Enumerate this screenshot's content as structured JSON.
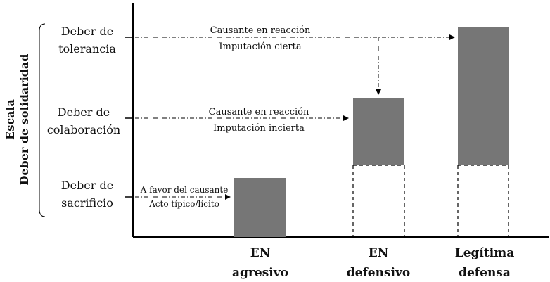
{
  "scale_label": {
    "line1": "Escala",
    "line2": "Deber de solidaridad"
  },
  "levels": [
    {
      "line1": "Deber de",
      "line2": "tolerancia"
    },
    {
      "line1": "Deber de",
      "line2": "colaboración"
    },
    {
      "line1": "Deber de",
      "line2": "sacrificio"
    }
  ],
  "annotations": {
    "top": {
      "line1": "Causante en reacción",
      "line2": "Imputación cierta"
    },
    "middle": {
      "line1": "Causante en reacción",
      "line2": "Imputación incierta"
    },
    "bottom": {
      "line1": "A favor del causante",
      "line2": "Acto típico/lícito"
    }
  },
  "categories": [
    {
      "line1": "EN",
      "line2": "agresivo"
    },
    {
      "line1": "EN",
      "line2": "defensivo"
    },
    {
      "line1": "Legítima",
      "line2": "defensa"
    }
  ],
  "colors": {
    "bar": "#767676",
    "axis": "#000000",
    "dashed": "#000000"
  }
}
